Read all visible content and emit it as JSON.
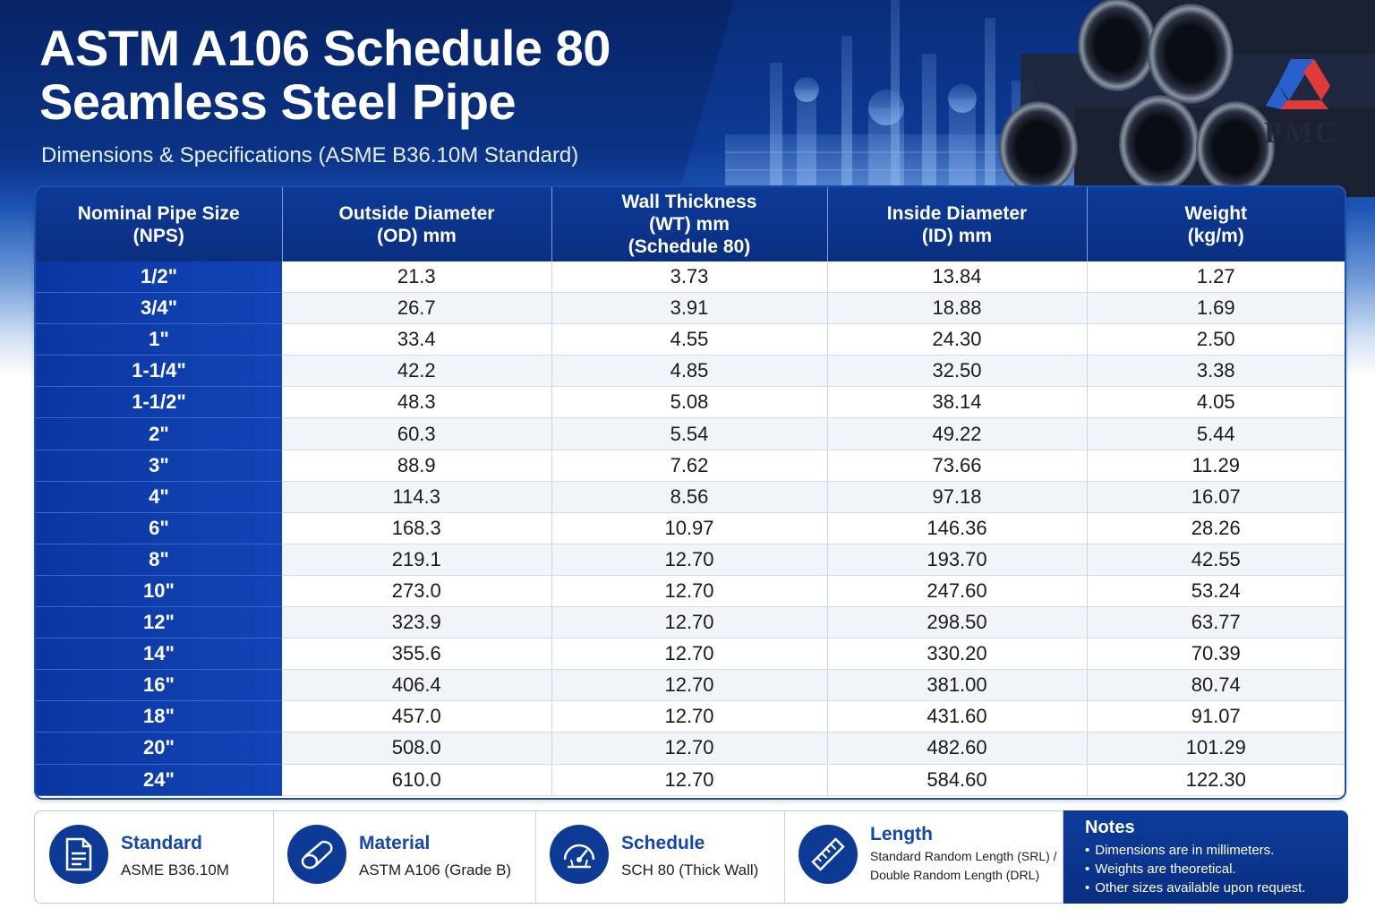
{
  "header": {
    "title_line1": "ASTM A106 Schedule 80",
    "title_line2": "Seamless Steel Pipe",
    "subtitle": "Dimensions & Specifications (ASME B36.10M Standard)",
    "logo_text": "PMC"
  },
  "table": {
    "columns": [
      [
        "Nominal Pipe Size",
        "(NPS)"
      ],
      [
        "Outside Diameter",
        "(OD) mm"
      ],
      [
        "Wall Thickness",
        "(WT) mm",
        "(Schedule 80)"
      ],
      [
        "Inside Diameter",
        "(ID) mm"
      ],
      [
        "Weight",
        "(kg/m)"
      ]
    ],
    "rows": [
      [
        "1/2\"",
        "21.3",
        "3.73",
        "13.84",
        "1.27"
      ],
      [
        "3/4\"",
        "26.7",
        "3.91",
        "18.88",
        "1.69"
      ],
      [
        "1\"",
        "33.4",
        "4.55",
        "24.30",
        "2.50"
      ],
      [
        "1-1/4\"",
        "42.2",
        "4.85",
        "32.50",
        "3.38"
      ],
      [
        "1-1/2\"",
        "48.3",
        "5.08",
        "38.14",
        "4.05"
      ],
      [
        "2\"",
        "60.3",
        "5.54",
        "49.22",
        "5.44"
      ],
      [
        "3\"",
        "88.9",
        "7.62",
        "73.66",
        "11.29"
      ],
      [
        "4\"",
        "114.3",
        "8.56",
        "97.18",
        "16.07"
      ],
      [
        "6\"",
        "168.3",
        "10.97",
        "146.36",
        "28.26"
      ],
      [
        "8\"",
        "219.1",
        "12.70",
        "193.70",
        "42.55"
      ],
      [
        "10\"",
        "273.0",
        "12.70",
        "247.60",
        "53.24"
      ],
      [
        "12\"",
        "323.9",
        "12.70",
        "298.50",
        "63.77"
      ],
      [
        "14\"",
        "355.6",
        "12.70",
        "330.20",
        "70.39"
      ],
      [
        "16\"",
        "406.4",
        "12.70",
        "381.00",
        "80.74"
      ],
      [
        "18\"",
        "457.0",
        "12.70",
        "431.60",
        "91.07"
      ],
      [
        "20\"",
        "508.0",
        "12.70",
        "482.60",
        "101.29"
      ],
      [
        "24\"",
        "610.0",
        "12.70",
        "584.60",
        "122.30"
      ]
    ]
  },
  "footer": {
    "standard": {
      "label": "Standard",
      "value": "ASME B36.10M",
      "icon": "document-icon"
    },
    "material": {
      "label": "Material",
      "value": "ASTM A106 (Grade B)",
      "icon": "pipe-icon"
    },
    "schedule": {
      "label": "Schedule",
      "value": "SCH 80 (Thick Wall)",
      "icon": "gauge-icon"
    },
    "length": {
      "label": "Length",
      "value_line1": "Standard Random Length (SRL) /",
      "value_line2": "Double Random Length (DRL)",
      "icon": "ruler-icon"
    }
  },
  "notes": {
    "title": "Notes",
    "items": [
      "Dimensions are in millimeters.",
      "Weights are theoretical.",
      "Other sizes available upon request."
    ]
  },
  "colors": {
    "primary": "#0c3a95",
    "accent": "#1247ab",
    "row_alt": "#f1f4f9"
  }
}
